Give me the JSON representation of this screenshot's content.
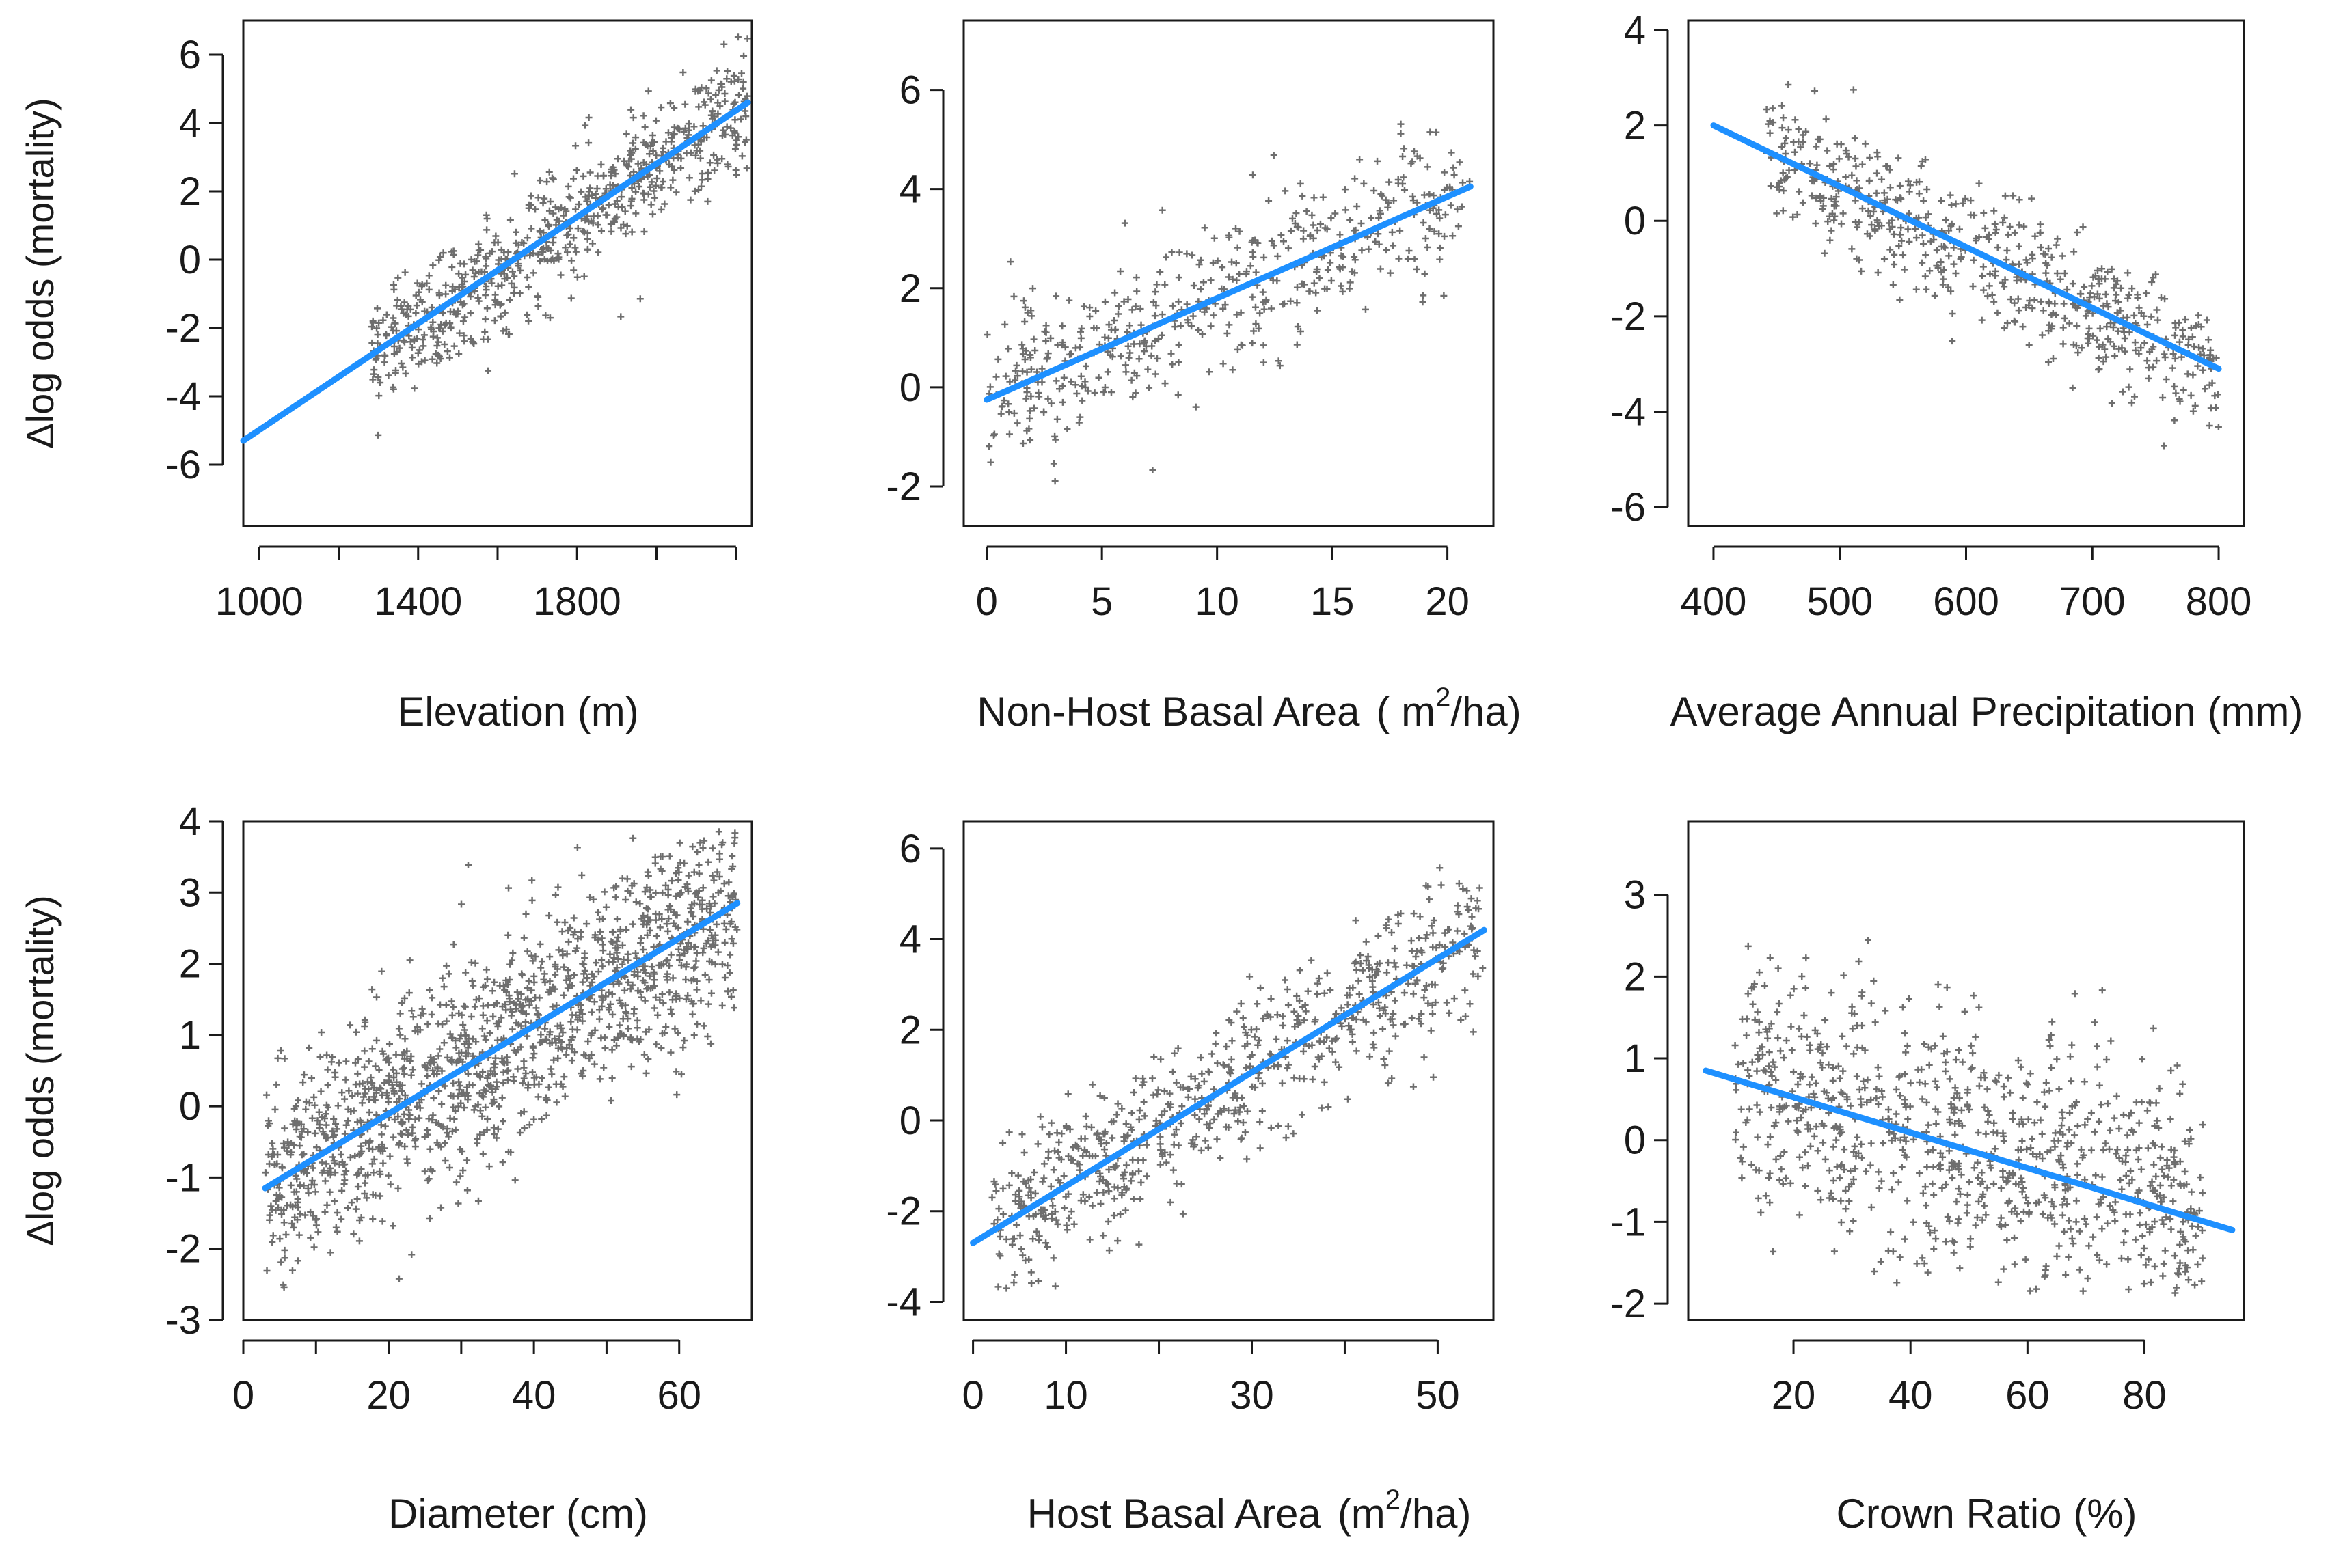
{
  "chart_data": [
    {
      "type": "scatter",
      "panel": "top-left",
      "xlabel": "Elevation (m)",
      "ylabel": "Δlog odds (mortality)",
      "xlim": [
        960,
        2240
      ],
      "ylim": [
        -7.8,
        7.0
      ],
      "xticks": [
        1000,
        1200,
        1400,
        1600,
        1800,
        2000,
        2200
      ],
      "xticklabels": [
        "1000",
        "",
        "1400",
        "",
        "1800",
        "",
        ""
      ],
      "yticks": [
        -6,
        -4,
        -2,
        0,
        2,
        4,
        6
      ],
      "yticklabels": [
        "-6",
        "-4",
        "-2",
        "0",
        "2",
        "4",
        "6"
      ],
      "fit_line": {
        "x": [
          960,
          2230
        ],
        "y": [
          -5.3,
          4.6
        ]
      },
      "scatter_spread": 1.2,
      "scatter_count": 700,
      "scatter_xrange": [
        1280,
        2230
      ]
    },
    {
      "type": "scatter",
      "panel": "top-middle",
      "xlabel": "Non-Host Basal Area",
      "xlabel_unit": "( m",
      "xlabel_sup": "2",
      "xlabel_unit_tail": "/ha)",
      "ylabel": "",
      "xlim": [
        -1,
        22
      ],
      "ylim": [
        -2.8,
        7.4
      ],
      "xticks": [
        0,
        5,
        10,
        15,
        20
      ],
      "xticklabels": [
        "0",
        "5",
        "10",
        "15",
        "20"
      ],
      "yticks": [
        -2,
        0,
        2,
        4,
        6
      ],
      "yticklabels": [
        "-2",
        "0",
        "2",
        "4",
        "6"
      ],
      "fit_line": {
        "x": [
          0,
          21
        ],
        "y": [
          -0.25,
          4.05
        ]
      },
      "scatter_spread": 1.0,
      "scatter_count": 500,
      "scatter_xrange": [
        0,
        21
      ]
    },
    {
      "type": "scatter",
      "panel": "top-right",
      "xlabel": "Average Annual Precipitation (mm)",
      "ylabel": "",
      "xlim": [
        380,
        820
      ],
      "ylim": [
        -6.4,
        4.2
      ],
      "xticks": [
        400,
        500,
        600,
        700,
        800
      ],
      "xticklabels": [
        "400",
        "500",
        "600",
        "700",
        "800"
      ],
      "yticks": [
        -6,
        -4,
        -2,
        0,
        2,
        4
      ],
      "yticklabels": [
        "-6",
        "-4",
        "-2",
        "0",
        "2",
        "4"
      ],
      "fit_line": {
        "x": [
          400,
          800
        ],
        "y": [
          2.0,
          -3.1
        ]
      },
      "scatter_spread": 0.9,
      "scatter_count": 600,
      "scatter_xrange": [
        440,
        800
      ]
    },
    {
      "type": "scatter",
      "panel": "bottom-left",
      "xlabel": "Diameter (cm)",
      "ylabel": "Δlog odds (mortality)",
      "xlim": [
        0,
        70
      ],
      "ylim": [
        -3.0,
        4.0
      ],
      "xticks": [
        0,
        10,
        20,
        30,
        40,
        50,
        60
      ],
      "xticklabels": [
        "0",
        "",
        "20",
        "",
        "40",
        "",
        "60"
      ],
      "yticks": [
        -3,
        -2,
        -1,
        0,
        1,
        2,
        3,
        4
      ],
      "yticklabels": [
        "-3",
        "-2",
        "-1",
        "0",
        "1",
        "2",
        "3",
        "4"
      ],
      "fit_line": {
        "x": [
          3,
          68
        ],
        "y": [
          -1.15,
          2.85
        ]
      },
      "scatter_spread": 1.0,
      "scatter_count": 1400,
      "scatter_xrange": [
        3,
        68
      ]
    },
    {
      "type": "scatter",
      "panel": "bottom-middle",
      "xlabel": "Host Basal Area",
      "xlabel_unit": "(m",
      "xlabel_sup": "2",
      "xlabel_unit_tail": "/ha)",
      "ylabel": "",
      "xlim": [
        -1,
        56
      ],
      "ylim": [
        -4.4,
        6.6
      ],
      "xticks": [
        0,
        10,
        20,
        30,
        40,
        50
      ],
      "xticklabels": [
        "0",
        "10",
        "",
        "30",
        "",
        "50"
      ],
      "yticks": [
        -4,
        -2,
        0,
        2,
        4,
        6
      ],
      "yticklabels": [
        "-4",
        "-2",
        "0",
        "2",
        "4",
        "6"
      ],
      "fit_line": {
        "x": [
          0,
          55
        ],
        "y": [
          -2.7,
          4.2
        ]
      },
      "scatter_spread": 1.1,
      "scatter_count": 700,
      "scatter_xrange": [
        2,
        55
      ]
    },
    {
      "type": "scatter",
      "panel": "bottom-right",
      "xlabel": "Crown Ratio (%)",
      "ylabel": "",
      "xlim": [
        2,
        97
      ],
      "ylim": [
        -2.2,
        3.9
      ],
      "xticks": [
        20,
        40,
        60,
        80
      ],
      "xticklabels": [
        "20",
        "40",
        "60",
        "80"
      ],
      "yticks": [
        -2,
        -1,
        0,
        1,
        2,
        3
      ],
      "yticklabels": [
        "-2",
        "-1",
        "0",
        "1",
        "2",
        "3"
      ],
      "fit_line": {
        "x": [
          5,
          95
        ],
        "y": [
          0.85,
          -1.1
        ]
      },
      "scatter_spread": 1.1,
      "scatter_count": 900,
      "scatter_xrange": [
        10,
        90
      ]
    }
  ],
  "colors": {
    "points": "#6e6e6e",
    "fit_line": "#1e90ff",
    "axis": "#1a1a1a"
  }
}
